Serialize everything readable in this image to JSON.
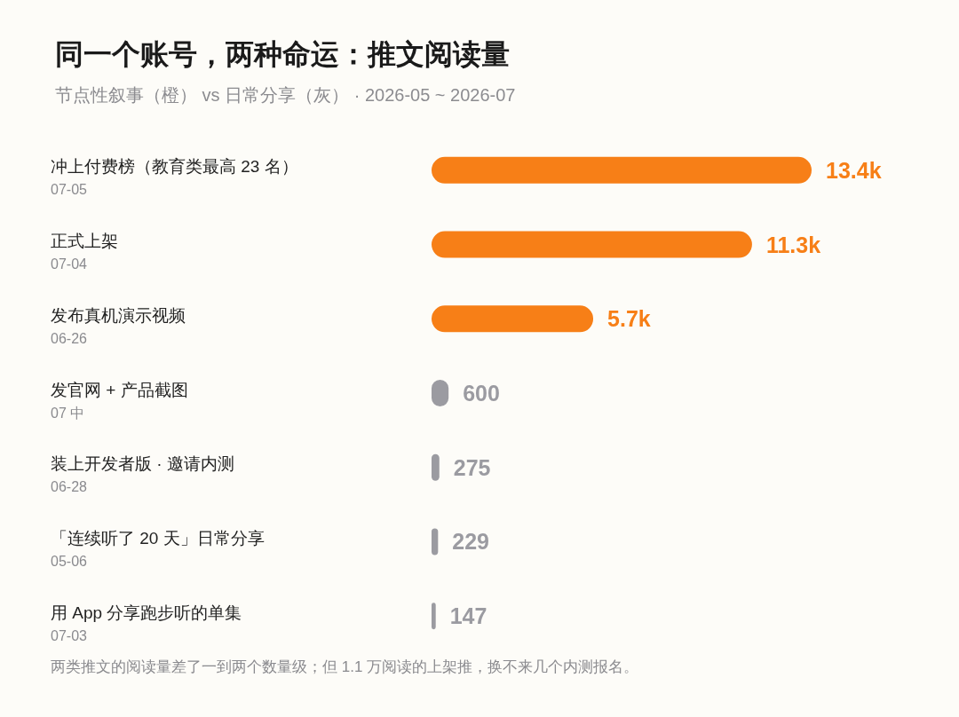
{
  "chart_data": {
    "type": "bar",
    "orientation": "horizontal",
    "title": "同一个账号，两种命运：推文阅读量",
    "subtitle": "节点性叙事（橙） vs 日常分享（灰） · 2026-05 ~ 2026-07",
    "categories": [
      "冲上付费榜（教育类最高 23 名）\n07-05",
      "正式上架\n07-04",
      "发布真机演示视频\n06-26",
      "发官网 + 产品截图\n07 中",
      "装上开发者版 · 邀请内测\n06-28",
      "「连续听了 20 天」日常分享\n05-06",
      "用 App 分享跑步听的单集\n07-03"
    ],
    "values": [
      13400,
      11300,
      5700,
      600,
      275,
      229,
      147
    ],
    "value_labels": [
      "13.4k",
      "11.3k",
      "5.7k",
      "600",
      "275",
      "229",
      "147"
    ],
    "colors": [
      "#f77f17",
      "#f77f17",
      "#f77f17",
      "#9b9ba1",
      "#9b9ba1",
      "#9b9ba1",
      "#9b9ba1"
    ],
    "tick_labels": "y",
    "annotations": [
      "两类推文的阅读量差了一到两个数量级；但 1.1 万阅读的上架推，换不来几个内测报名。"
    ]
  }
}
